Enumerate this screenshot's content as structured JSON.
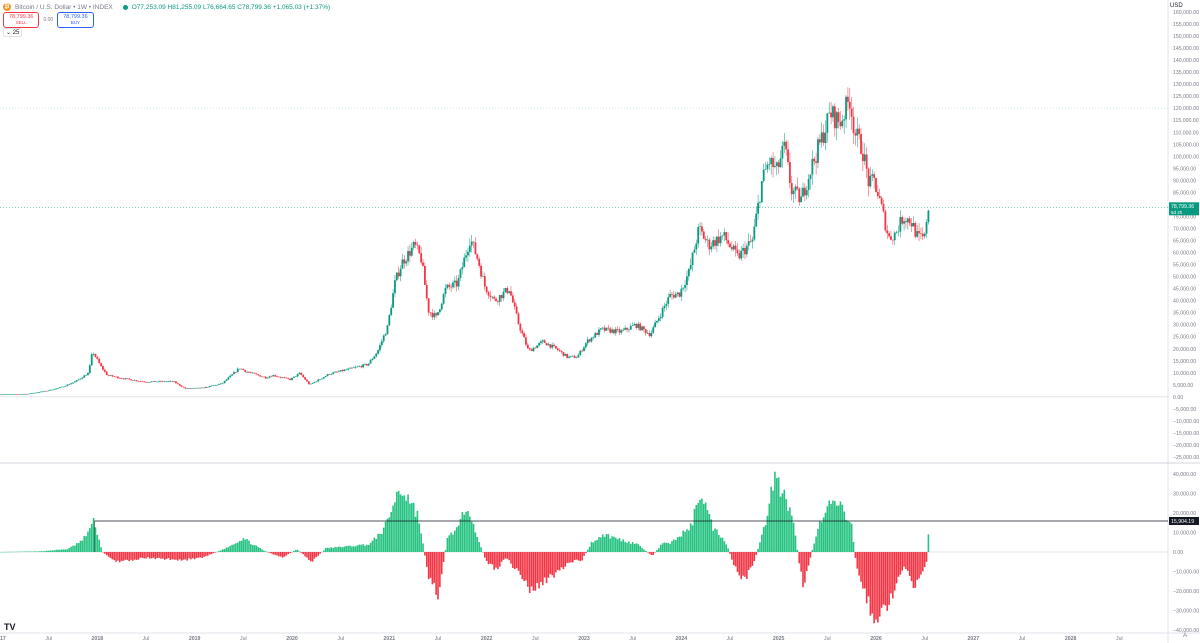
{
  "header": {
    "coin_symbol": "₿",
    "symbol_title": "Bitcoin / U.S. Dollar • 1W • INDEX",
    "ohlc": "O77,253.09 H81,255.09 L76,664.65 C78,799.36 +1,065.03 (+1.37%)",
    "market_status_color": "#089981"
  },
  "trade": {
    "sell_price": "78,799.36",
    "sell_label": "SELL",
    "spread": "0.00",
    "buy_price": "78,799.36",
    "buy_label": "BUY"
  },
  "volume_toggle": "25",
  "currency": "USD",
  "logo": "TV",
  "auto_label": "A",
  "chart_data": [
    {
      "type": "candlestick",
      "ylim": [
        -25000,
        160000
      ],
      "ytick_labels": [
        "−25,000.00",
        "−20,000.00",
        "−15,000.00",
        "−10,000.00",
        "−5,000.00",
        "0.00",
        "5,000.00",
        "10,000.00",
        "15,000.00",
        "20,000.00",
        "25,000.00",
        "30,000.00",
        "35,000.00",
        "40,000.00",
        "45,000.00",
        "50,000.00",
        "55,000.00",
        "60,000.00",
        "65,000.00",
        "70,000.00",
        "75,000.00",
        "80,000.00",
        "85,000.00",
        "90,000.00",
        "95,000.00",
        "100,000.00",
        "105,000.00",
        "110,000.00",
        "115,000.00",
        "120,000.00",
        "125,000.00",
        "130,000.00",
        "135,000.00",
        "140,000.00",
        "145,000.00",
        "150,000.00",
        "155,000.00",
        "160,000.00"
      ],
      "x_ticks": [
        "2017",
        "Jul",
        "2018",
        "Jul",
        "2019",
        "Jul",
        "2020",
        "Jul",
        "2021",
        "Jul",
        "2022",
        "Jul",
        "2023",
        "Jul",
        "2024",
        "Jul",
        "2025",
        "Jul",
        "2026",
        "Jul",
        "2027",
        "Jul",
        "2028",
        "Jul"
      ],
      "x_range": [
        2017.0,
        2029.0
      ],
      "price_anchors": [
        [
          2017.0,
          1000
        ],
        [
          2017.3,
          1200
        ],
        [
          2017.5,
          2500
        ],
        [
          2017.65,
          4000
        ],
        [
          2017.8,
          6500
        ],
        [
          2017.93,
          10000
        ],
        [
          2017.97,
          19000
        ],
        [
          2018.05,
          13000
        ],
        [
          2018.12,
          9000
        ],
        [
          2018.3,
          7500
        ],
        [
          2018.5,
          6300
        ],
        [
          2018.8,
          6400
        ],
        [
          2018.92,
          3500
        ],
        [
          2019.1,
          3700
        ],
        [
          2019.3,
          5500
        ],
        [
          2019.48,
          12000
        ],
        [
          2019.55,
          10500
        ],
        [
          2019.75,
          8000
        ],
        [
          2019.82,
          9000
        ],
        [
          2020.0,
          7200
        ],
        [
          2020.1,
          9800
        ],
        [
          2020.2,
          5000
        ],
        [
          2020.4,
          9500
        ],
        [
          2020.6,
          11500
        ],
        [
          2020.8,
          13500
        ],
        [
          2020.9,
          19000
        ],
        [
          2021.0,
          29000
        ],
        [
          2021.08,
          48000
        ],
        [
          2021.15,
          56000
        ],
        [
          2021.28,
          63000
        ],
        [
          2021.35,
          57000
        ],
        [
          2021.42,
          36000
        ],
        [
          2021.5,
          33000
        ],
        [
          2021.6,
          45000
        ],
        [
          2021.72,
          47000
        ],
        [
          2021.85,
          66000
        ],
        [
          2021.93,
          57000
        ],
        [
          2022.0,
          46000
        ],
        [
          2022.1,
          40000
        ],
        [
          2022.25,
          45000
        ],
        [
          2022.35,
          30000
        ],
        [
          2022.45,
          19000
        ],
        [
          2022.6,
          23000
        ],
        [
          2022.75,
          19500
        ],
        [
          2022.85,
          16500
        ],
        [
          2022.95,
          16600
        ],
        [
          2023.05,
          23000
        ],
        [
          2023.2,
          28000
        ],
        [
          2023.4,
          27000
        ],
        [
          2023.55,
          30000
        ],
        [
          2023.7,
          26000
        ],
        [
          2023.8,
          34000
        ],
        [
          2023.9,
          42000
        ],
        [
          2024.0,
          43000
        ],
        [
          2024.1,
          52000
        ],
        [
          2024.2,
          70000
        ],
        [
          2024.3,
          63000
        ],
        [
          2024.45,
          67000
        ],
        [
          2024.6,
          58000
        ],
        [
          2024.75,
          65000
        ],
        [
          2024.85,
          90000
        ],
        [
          2024.92,
          98000
        ],
        [
          2025.0,
          94000
        ],
        [
          2025.08,
          104000
        ],
        [
          2025.15,
          86000
        ],
        [
          2025.25,
          82000
        ],
        [
          2025.35,
          95000
        ],
        [
          2025.45,
          106000
        ],
        [
          2025.55,
          118000
        ],
        [
          2025.65,
          114000
        ],
        [
          2025.75,
          124000
        ],
        [
          2025.8,
          110000
        ],
        [
          2025.88,
          103000
        ],
        [
          2025.95,
          88000
        ],
        [
          2026.0,
          90000
        ],
        [
          2026.08,
          78000
        ],
        [
          2026.15,
          66000
        ],
        [
          2026.22,
          68000
        ],
        [
          2026.3,
          75000
        ],
        [
          2026.38,
          73000
        ],
        [
          2026.45,
          66000
        ],
        [
          2026.52,
          66000
        ],
        [
          2026.55,
          78800
        ]
      ],
      "last_price": 78799.36,
      "last_price_label": "78,799.36",
      "countdown_label": "5d 2h",
      "price_line": 120000,
      "up_color": "#089981",
      "down_color": "#f23645"
    },
    {
      "type": "histogram",
      "ylim": [
        -40000,
        40000
      ],
      "ytick_labels": [
        "−40,000.00",
        "−30,000.00",
        "−20,000.00",
        "−10,000.00",
        "0.00",
        "10,000.00",
        "20,000.00",
        "30,000.00",
        "40,000.00"
      ],
      "osc_anchors": [
        [
          2017.0,
          0
        ],
        [
          2017.4,
          300
        ],
        [
          2017.7,
          1500
        ],
        [
          2017.85,
          6000
        ],
        [
          2017.97,
          16000
        ],
        [
          2018.05,
          0
        ],
        [
          2018.2,
          -5000
        ],
        [
          2018.5,
          -3000
        ],
        [
          2018.9,
          -4000
        ],
        [
          2019.1,
          -2500
        ],
        [
          2019.3,
          1500
        ],
        [
          2019.5,
          7000
        ],
        [
          2019.7,
          1000
        ],
        [
          2019.9,
          -3000
        ],
        [
          2020.05,
          1500
        ],
        [
          2020.2,
          -5000
        ],
        [
          2020.35,
          2000
        ],
        [
          2020.6,
          3000
        ],
        [
          2020.8,
          4000
        ],
        [
          2020.95,
          12000
        ],
        [
          2021.1,
          32000
        ],
        [
          2021.2,
          28000
        ],
        [
          2021.3,
          18000
        ],
        [
          2021.4,
          -12000
        ],
        [
          2021.5,
          -22000
        ],
        [
          2021.6,
          8000
        ],
        [
          2021.72,
          13000
        ],
        [
          2021.8,
          26000
        ],
        [
          2021.92,
          5000
        ],
        [
          2022.0,
          -5000
        ],
        [
          2022.1,
          -9000
        ],
        [
          2022.2,
          -3000
        ],
        [
          2022.35,
          -12000
        ],
        [
          2022.45,
          -20000
        ],
        [
          2022.6,
          -15000
        ],
        [
          2022.75,
          -10000
        ],
        [
          2022.85,
          -5000
        ],
        [
          2022.98,
          -4000
        ],
        [
          2023.08,
          5000
        ],
        [
          2023.2,
          9000
        ],
        [
          2023.4,
          6000
        ],
        [
          2023.55,
          4000
        ],
        [
          2023.7,
          -2000
        ],
        [
          2023.8,
          4000
        ],
        [
          2023.9,
          5000
        ],
        [
          2024.0,
          9000
        ],
        [
          2024.1,
          13000
        ],
        [
          2024.2,
          32000
        ],
        [
          2024.32,
          13000
        ],
        [
          2024.45,
          6000
        ],
        [
          2024.55,
          -8000
        ],
        [
          2024.65,
          -15000
        ],
        [
          2024.75,
          -5000
        ],
        [
          2024.85,
          12000
        ],
        [
          2024.95,
          38000
        ],
        [
          2025.05,
          30000
        ],
        [
          2025.15,
          15000
        ],
        [
          2025.25,
          -18000
        ],
        [
          2025.33,
          -2000
        ],
        [
          2025.4,
          12000
        ],
        [
          2025.55,
          26000
        ],
        [
          2025.65,
          22000
        ],
        [
          2025.75,
          13000
        ],
        [
          2025.8,
          -8000
        ],
        [
          2025.88,
          -20000
        ],
        [
          2025.98,
          -35000
        ],
        [
          2026.05,
          -33000
        ],
        [
          2026.15,
          -25000
        ],
        [
          2026.22,
          -13000
        ],
        [
          2026.3,
          -8000
        ],
        [
          2026.38,
          -18000
        ],
        [
          2026.45,
          -12000
        ],
        [
          2026.52,
          -5000
        ],
        [
          2026.55,
          15904
        ]
      ],
      "last_value_label": "15,904.19",
      "level_line": 15904.19,
      "up_color": "#26c281",
      "down_color": "#f23645"
    }
  ]
}
